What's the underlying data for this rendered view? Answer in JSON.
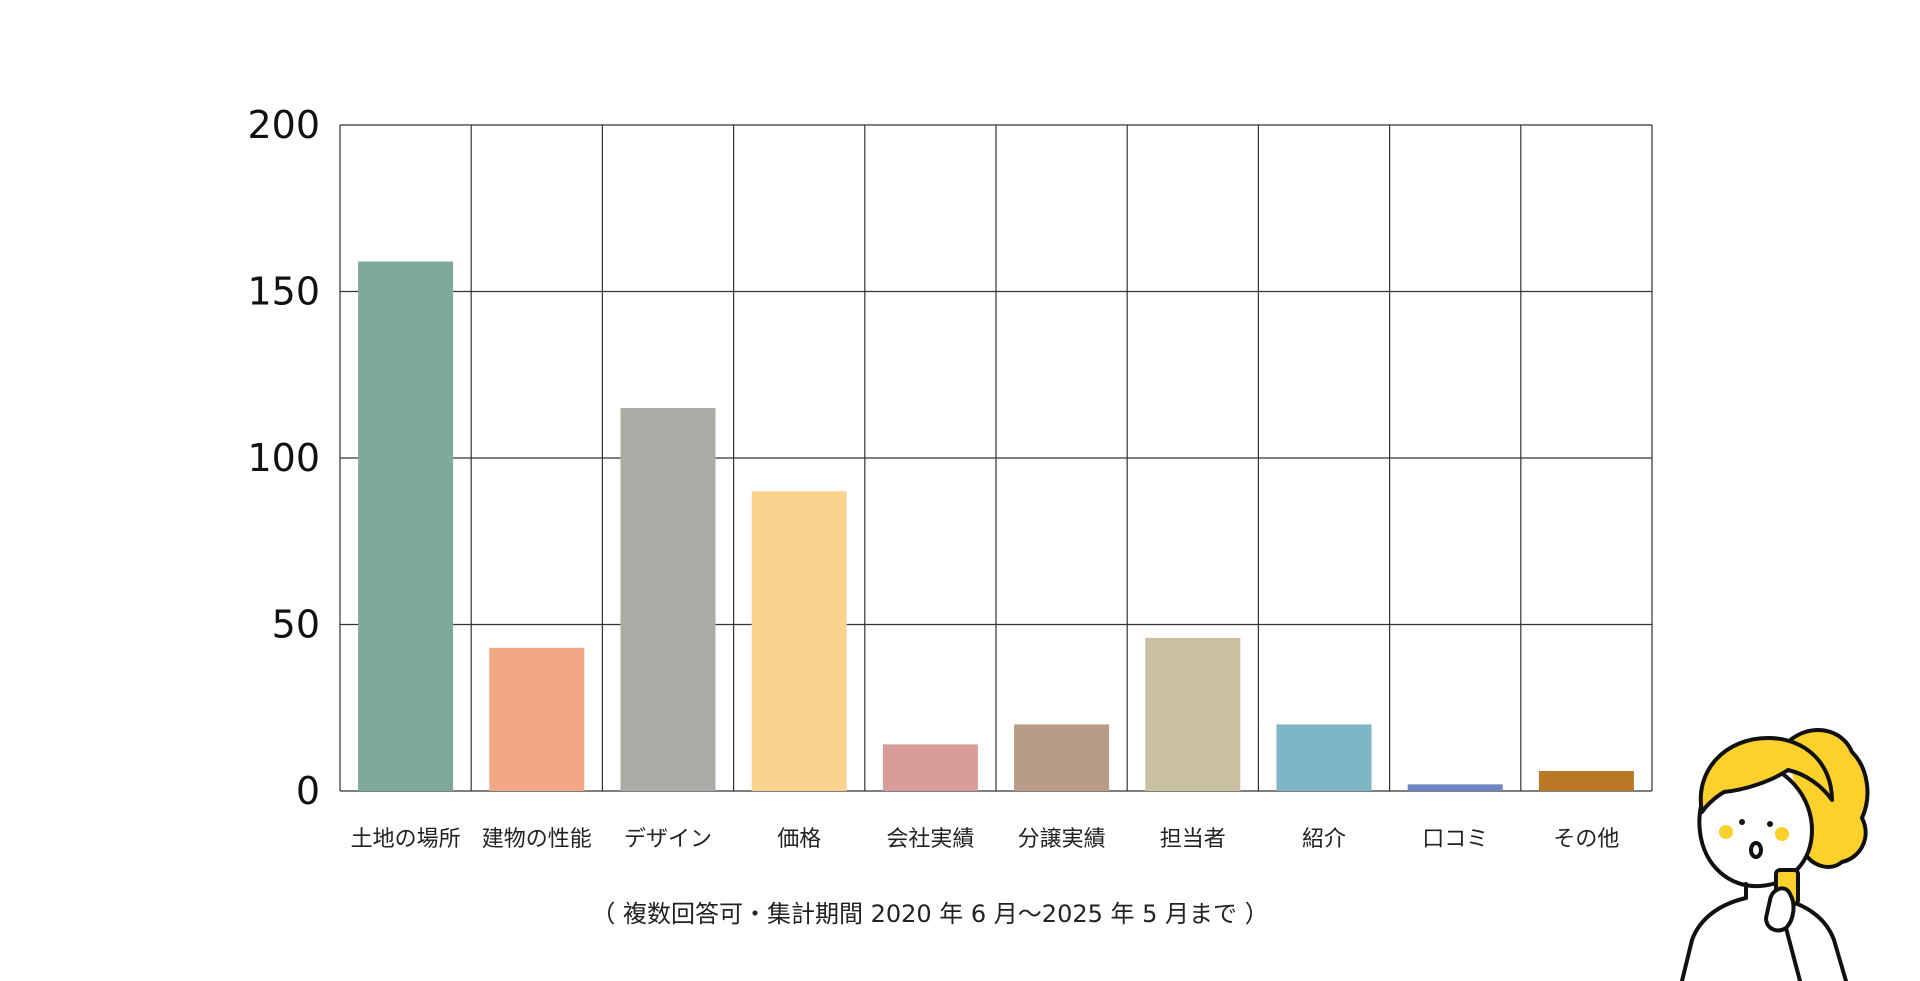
{
  "chart_data": {
    "type": "bar",
    "categories": [
      "土地の場所",
      "建物の性能",
      "デザイン",
      "価格",
      "会社実績",
      "分譲実績",
      "担当者",
      "紹介",
      "口コミ",
      "その他"
    ],
    "values": [
      159,
      43,
      115,
      90,
      14,
      20,
      46,
      20,
      2,
      6
    ],
    "colors": [
      "#7fa99b",
      "#f2a886",
      "#aaada5",
      "#f9d38d",
      "#d99d99",
      "#b89c88",
      "#c9c0a1",
      "#7fb6c5",
      "#6f84c2",
      "#b87826"
    ],
    "ylim": [
      0,
      200
    ],
    "yticks": [
      0,
      50,
      100,
      150,
      200
    ],
    "grid": true,
    "xlabel": "",
    "ylabel": "",
    "note": "（ 複数回答可・集計期間 2020 年 6 月〜2025 年 5 月まで ）"
  },
  "illustration": {
    "icon": "woman-looking-at-phone-illustration",
    "hair_color": "#fcd12c",
    "cheek_color": "#fcd12c"
  }
}
